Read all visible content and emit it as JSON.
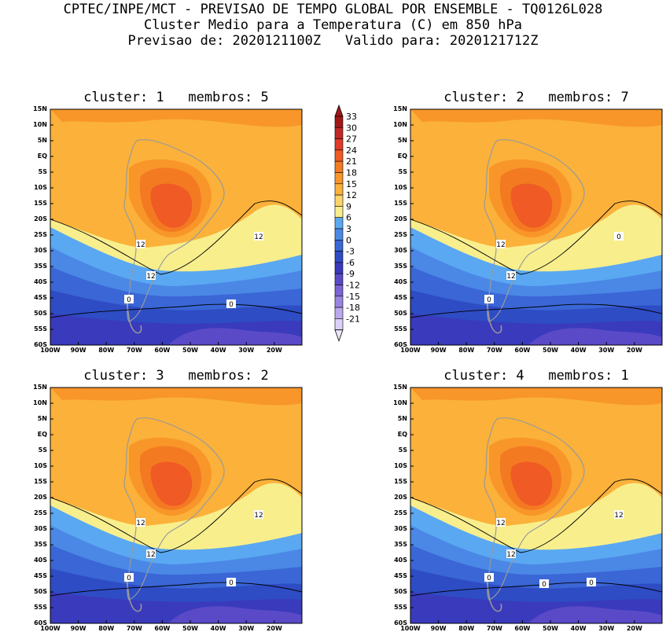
{
  "header": {
    "line1": "CPTEC/INPE/MCT - PREVISAO DE TEMPO GLOBAL POR ENSEMBLE - TQ0126L028",
    "line2": "Cluster Medio para a Temperatura (C) em 850 hPa",
    "line3": "Previsao de: 2020121100Z   Valido para: 2020121712Z"
  },
  "lat_labels": [
    "15N",
    "10N",
    "5N",
    "EQ",
    "5S",
    "10S",
    "15S",
    "20S",
    "25S",
    "30S",
    "35S",
    "40S",
    "45S",
    "50S",
    "55S",
    "60S"
  ],
  "lon_labels": [
    "100W",
    "90W",
    "80W",
    "70W",
    "60W",
    "50W",
    "40W",
    "30W",
    "20W"
  ],
  "colorbar": {
    "labels": [
      "33",
      "30",
      "27",
      "24",
      "21",
      "18",
      "15",
      "12",
      "9",
      "6",
      "3",
      "0",
      "-3",
      "-6",
      "-9",
      "-12",
      "-15",
      "-18",
      "-21"
    ],
    "colors": [
      "#a01818",
      "#c02828",
      "#e03a2a",
      "#f05a24",
      "#f47a22",
      "#f8962a",
      "#fbb13a",
      "#fdd46a",
      "#f8ee8c",
      "#5aa8f2",
      "#4b88e6",
      "#3a66d6",
      "#2e4cc4",
      "#3a3abc",
      "#5a4ac8",
      "#7a64d6",
      "#9a84e2",
      "#bca8ee",
      "#dcd0f8"
    ]
  },
  "panels": [
    {
      "title": "cluster: 1   membros: 5",
      "contour_labels": [
        "12",
        "12",
        "12",
        "0",
        "0"
      ]
    },
    {
      "title": "cluster: 2   membros: 7",
      "contour_labels": [
        "12",
        "12",
        "0",
        "0"
      ]
    },
    {
      "title": "cluster: 3   membros: 2",
      "contour_labels": [
        "12",
        "12",
        "12",
        "0",
        "0"
      ]
    },
    {
      "title": "cluster: 4   membros: 1",
      "contour_labels": [
        "12",
        "12",
        "12",
        "0",
        "0",
        "0"
      ]
    }
  ]
}
